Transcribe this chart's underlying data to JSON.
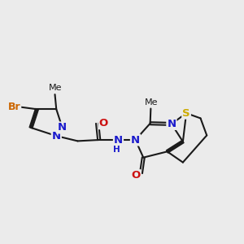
{
  "bg_color": "#ebebeb",
  "bond_color": "#1a1a1a",
  "bond_lw": 1.5,
  "dbo": 0.042,
  "figsize": [
    3.0,
    3.0
  ],
  "dpi": 100,
  "col_N": "#1a1acc",
  "col_O": "#cc1111",
  "col_S": "#ccaa00",
  "col_Br": "#cc6600",
  "col_C": "#1a1a1a",
  "xlim": [
    0.3,
    8.8
  ],
  "ylim": [
    1.6,
    6.2
  ]
}
